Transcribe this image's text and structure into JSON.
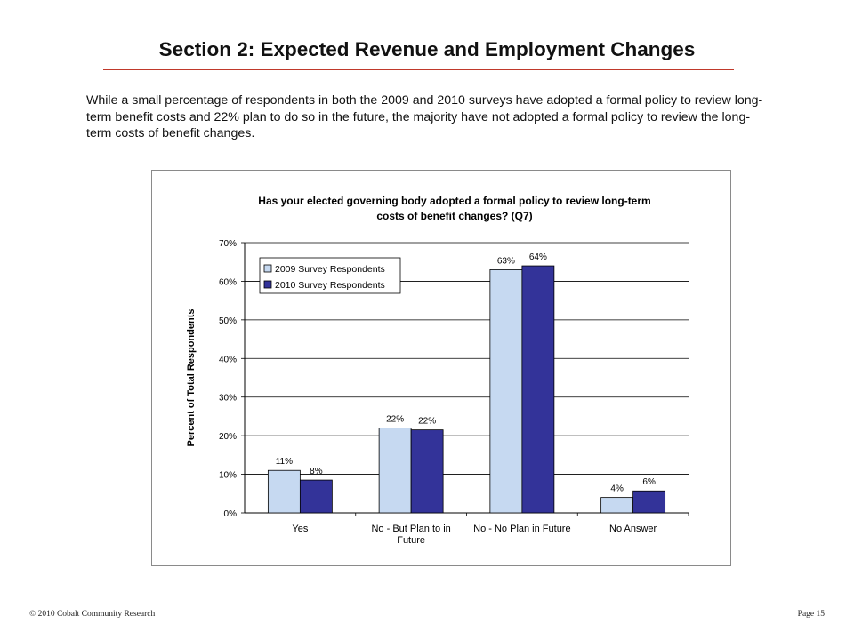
{
  "header": {
    "title": "Section 2: Expected Revenue and Employment Changes"
  },
  "intro": {
    "text": "While a small percentage of respondents in both the 2009 and 2010 surveys have adopted a formal policy to review long-term benefit costs and 22% plan to do so in the future, the majority have not adopted a formal policy to review the long-term costs of benefit changes."
  },
  "chart_data": {
    "type": "bar",
    "title_lines": [
      "Has your elected governing body adopted a formal policy to review long-term",
      "costs of benefit changes? (Q7)"
    ],
    "ylabel": "Percent of Total Respondents",
    "xlabel": "",
    "ylim": [
      0,
      70
    ],
    "yticks": [
      0,
      10,
      20,
      30,
      40,
      50,
      60,
      70
    ],
    "ytick_labels": [
      "0%",
      "10%",
      "20%",
      "30%",
      "40%",
      "50%",
      "60%",
      "70%"
    ],
    "grid": true,
    "legend_position": "top-left",
    "category_labels": [
      [
        "Yes"
      ],
      [
        "No - But Plan to in",
        "Future"
      ],
      [
        "No - No Plan in Future"
      ],
      [
        "No Answer"
      ]
    ],
    "series": [
      {
        "name": "2009 Survey Respondents",
        "color": "#c6d9f1",
        "values": [
          11,
          22,
          63,
          4
        ],
        "labels": [
          "11%",
          "22%",
          "63%",
          "4%"
        ]
      },
      {
        "name": "2010 Survey Respondents",
        "color": "#333399",
        "values": [
          8.5,
          21.5,
          64,
          5.7
        ],
        "labels": [
          "8%",
          "22%",
          "64%",
          "6%"
        ]
      }
    ]
  },
  "footer": {
    "left": "© 2010 Cobalt Community Research",
    "right": "Page 15"
  }
}
